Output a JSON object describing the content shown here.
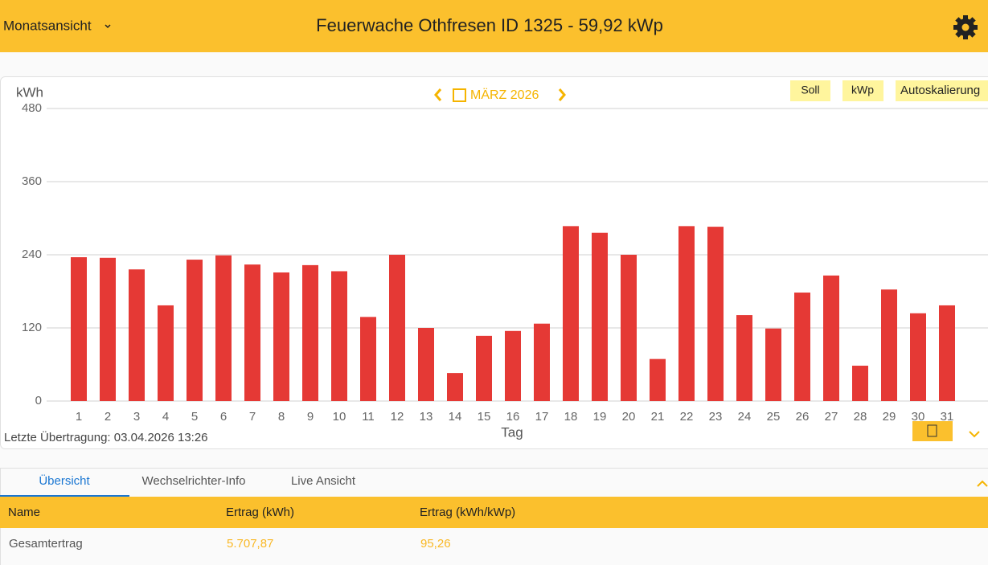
{
  "header": {
    "view": "Monatsansicht",
    "title": "Feuerwache Othfresen ID 1325 - 59,92 kWp"
  },
  "controls": {
    "period": "MÄRZ 2026",
    "buttons": [
      "Soll",
      "kWp",
      "Autoskalierung"
    ]
  },
  "chart_data": {
    "type": "bar",
    "y_label": "kWh",
    "x_label": "Tag",
    "categories": [
      "1",
      "2",
      "3",
      "4",
      "5",
      "6",
      "7",
      "8",
      "9",
      "10",
      "11",
      "12",
      "13",
      "14",
      "15",
      "16",
      "17",
      "18",
      "19",
      "20",
      "21",
      "22",
      "23",
      "24",
      "25",
      "26",
      "27",
      "28",
      "29",
      "30",
      "31"
    ],
    "values": [
      236,
      235,
      216,
      157,
      232,
      239,
      224,
      211,
      223,
      213,
      138,
      240,
      120,
      46,
      107,
      115,
      127,
      287,
      276,
      240,
      69,
      287,
      286,
      141,
      119,
      178,
      206,
      58,
      183,
      144,
      157
    ],
    "color": "#e53935",
    "ylim": [
      0,
      480
    ],
    "yticks": [
      0,
      120,
      240,
      360,
      480
    ],
    "grid": true
  },
  "status": "Letzte Übertragung: 03.04.2026 13:26",
  "tabs": [
    "Übersicht",
    "Wechselrichter-Info",
    "Live Ansicht"
  ],
  "table": {
    "columns": [
      "Name",
      "Ertrag (kWh)",
      "Ertrag (kWh/kWp)"
    ],
    "rows": [
      [
        "Gesamtertrag",
        "5.707,87",
        "95,26"
      ]
    ]
  }
}
